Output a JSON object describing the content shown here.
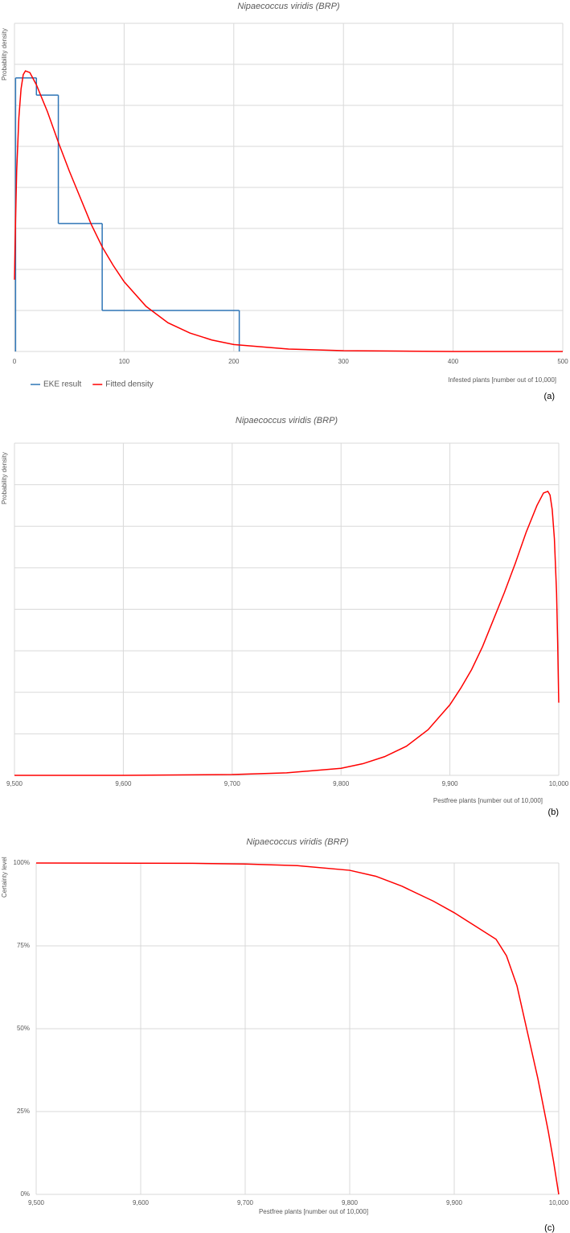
{
  "chart_data": [
    {
      "type": "line",
      "title": "Nipaecoccus viridis (BRP)",
      "panel_label": "(a)",
      "y_label": "Probability density",
      "x_label": "Infested plants [number out of 10,000]",
      "xlim": [
        0,
        500
      ],
      "xticks": [
        0,
        100,
        200,
        300,
        400,
        500
      ],
      "ylim": [
        0,
        8
      ],
      "yticks": [
        0,
        1,
        2,
        3,
        4,
        5,
        6,
        7,
        8
      ],
      "ytick_labels": false,
      "grid": true,
      "legend": "bottom-left",
      "series": [
        {
          "name": "EKE result",
          "color": "#2e75b6",
          "bins": [
            1,
            20,
            40,
            80,
            205
          ],
          "values": [
            6.67,
            6.25,
            3.12,
            1.0
          ]
        },
        {
          "name": "Fitted density",
          "color": "#ff0000",
          "x": [
            0,
            1,
            2,
            4,
            6,
            8,
            10,
            14,
            20,
            30,
            40,
            50,
            60,
            70,
            80,
            90,
            100,
            120,
            140,
            160,
            180,
            200,
            250,
            300,
            350,
            400,
            450,
            500
          ],
          "values": [
            1.75,
            3.2,
            4.4,
            5.7,
            6.4,
            6.75,
            6.84,
            6.8,
            6.5,
            5.85,
            5.1,
            4.4,
            3.75,
            3.1,
            2.55,
            2.1,
            1.7,
            1.1,
            0.7,
            0.45,
            0.28,
            0.17,
            0.06,
            0.02,
            0.01,
            0,
            0,
            0
          ]
        }
      ]
    },
    {
      "type": "line",
      "title": "Nipaecoccus viridis (BRP)",
      "panel_label": "(b)",
      "y_label": "Probability density",
      "x_label": "Pestfree plants [number out of 10,000]",
      "xlim": [
        9500,
        10000
      ],
      "xticks": [
        {
          "value": 9500,
          "label": "9,500"
        },
        {
          "value": 9600,
          "label": "9,600"
        },
        {
          "value": 9700,
          "label": "9,700"
        },
        {
          "value": 9800,
          "label": "9,800"
        },
        {
          "value": 9900,
          "label": "9,900"
        },
        {
          "value": 10000,
          "label": "10,000"
        }
      ],
      "ylim": [
        0,
        8
      ],
      "yticks": [
        0,
        1,
        2,
        3,
        4,
        5,
        6,
        7,
        8
      ],
      "ytick_labels": false,
      "grid": true,
      "series": [
        {
          "color": "#ff0000",
          "x": [
            9500,
            9550,
            9600,
            9650,
            9700,
            9750,
            9800,
            9820,
            9840,
            9860,
            9880,
            9900,
            9910,
            9920,
            9930,
            9940,
            9950,
            9960,
            9970,
            9980,
            9986,
            9990,
            9992,
            9994,
            9996,
            9998,
            9999,
            10000
          ],
          "values": [
            0,
            0,
            0,
            0.01,
            0.02,
            0.06,
            0.17,
            0.28,
            0.45,
            0.7,
            1.1,
            1.7,
            2.1,
            2.55,
            3.1,
            3.75,
            4.4,
            5.1,
            5.85,
            6.5,
            6.8,
            6.84,
            6.75,
            6.4,
            5.7,
            4.4,
            3.2,
            1.75
          ]
        }
      ]
    },
    {
      "type": "line",
      "title": "Nipaecoccus viridis (BRP)",
      "panel_label": "(c)",
      "y_label": "Certainty level",
      "x_label": "Pestfree plants [number out of 10,000]",
      "xlim": [
        9500,
        10000
      ],
      "xticks": [
        {
          "value": 9500,
          "label": "9,500"
        },
        {
          "value": 9600,
          "label": "9,600"
        },
        {
          "value": 9700,
          "label": "9,700"
        },
        {
          "value": 9800,
          "label": "9,800"
        },
        {
          "value": 9900,
          "label": "9,900"
        },
        {
          "value": 10000,
          "label": "10,000"
        }
      ],
      "ylim": [
        0,
        100
      ],
      "yticks": [
        {
          "value": 0,
          "label": "0%"
        },
        {
          "value": 25,
          "label": "25%"
        },
        {
          "value": 50,
          "label": "50%"
        },
        {
          "value": 75,
          "label": "75%"
        },
        {
          "value": 100,
          "label": "100%"
        }
      ],
      "ytick_labels": true,
      "grid": true,
      "series": [
        {
          "color": "#ff0000",
          "x": [
            9500,
            9600,
            9650,
            9700,
            9750,
            9800,
            9825,
            9850,
            9880,
            9900,
            9920,
            9940,
            9950,
            9960,
            9970,
            9980,
            9990,
            9995,
            10000
          ],
          "values": [
            100,
            99.95,
            99.9,
            99.7,
            99.2,
            97.8,
            96,
            93,
            88.5,
            85,
            81,
            77,
            72,
            63,
            49,
            35,
            19,
            10,
            0
          ]
        }
      ]
    }
  ]
}
